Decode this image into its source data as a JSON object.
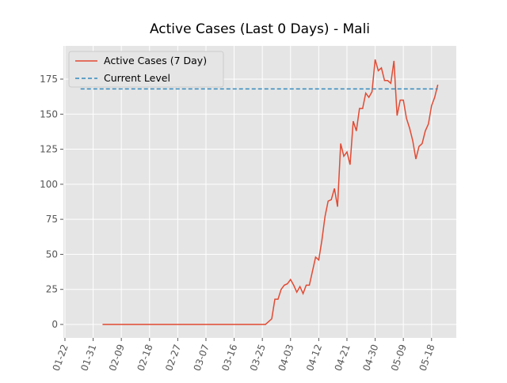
{
  "chart_data": {
    "type": "line",
    "title": "Active Cases (Last 0 Days) - Mali",
    "x": [
      12,
      64,
      66,
      67,
      68,
      69,
      70,
      71,
      72,
      73,
      74,
      75,
      76,
      77,
      78,
      80,
      81,
      82,
      83,
      84,
      85,
      86,
      87,
      88,
      89,
      90,
      91,
      92,
      93,
      94,
      95,
      96,
      97,
      98,
      99,
      100,
      101,
      102,
      103,
      104,
      105,
      106,
      107,
      108,
      109,
      110,
      111,
      112,
      113,
      114,
      115,
      116,
      117,
      118,
      119
    ],
    "series": [
      {
        "name": "Active Cases (7 Day)",
        "color": "#e24a33",
        "style": "solid",
        "values": [
          0,
          0,
          4,
          18,
          18,
          25,
          28,
          29,
          32,
          28,
          23,
          27,
          22,
          28,
          28,
          48,
          46,
          60,
          77,
          88,
          89,
          97,
          84,
          129,
          120,
          123,
          114,
          145,
          138,
          154,
          154,
          165,
          162,
          166,
          189,
          181,
          183,
          174,
          174,
          172,
          188,
          149,
          160,
          160,
          147,
          140,
          131,
          118,
          127,
          129,
          138,
          143,
          156,
          162,
          171
        ]
      },
      {
        "name": "Current Level",
        "color": "#348abd",
        "style": "dashed",
        "x": [
          5,
          119
        ],
        "values": [
          168,
          168
        ]
      }
    ],
    "xlim": [
      -0.5,
      124.9
    ],
    "xticks": [
      {
        "value": 0,
        "label": "01-22"
      },
      {
        "value": 9,
        "label": "01-31"
      },
      {
        "value": 18,
        "label": "02-09"
      },
      {
        "value": 27,
        "label": "02-18"
      },
      {
        "value": 36,
        "label": "02-27"
      },
      {
        "value": 45,
        "label": "03-07"
      },
      {
        "value": 54,
        "label": "03-16"
      },
      {
        "value": 63,
        "label": "03-25"
      },
      {
        "value": 72,
        "label": "04-03"
      },
      {
        "value": 81,
        "label": "04-12"
      },
      {
        "value": 90,
        "label": "04-21"
      },
      {
        "value": 99,
        "label": "04-30"
      },
      {
        "value": 108,
        "label": "05-09"
      },
      {
        "value": 117,
        "label": "05-18"
      }
    ],
    "ylim": [
      -9.6,
      198.7
    ],
    "yticks": [
      0,
      25,
      50,
      75,
      100,
      125,
      150,
      175
    ],
    "grid": true,
    "legend": "upper-left"
  }
}
